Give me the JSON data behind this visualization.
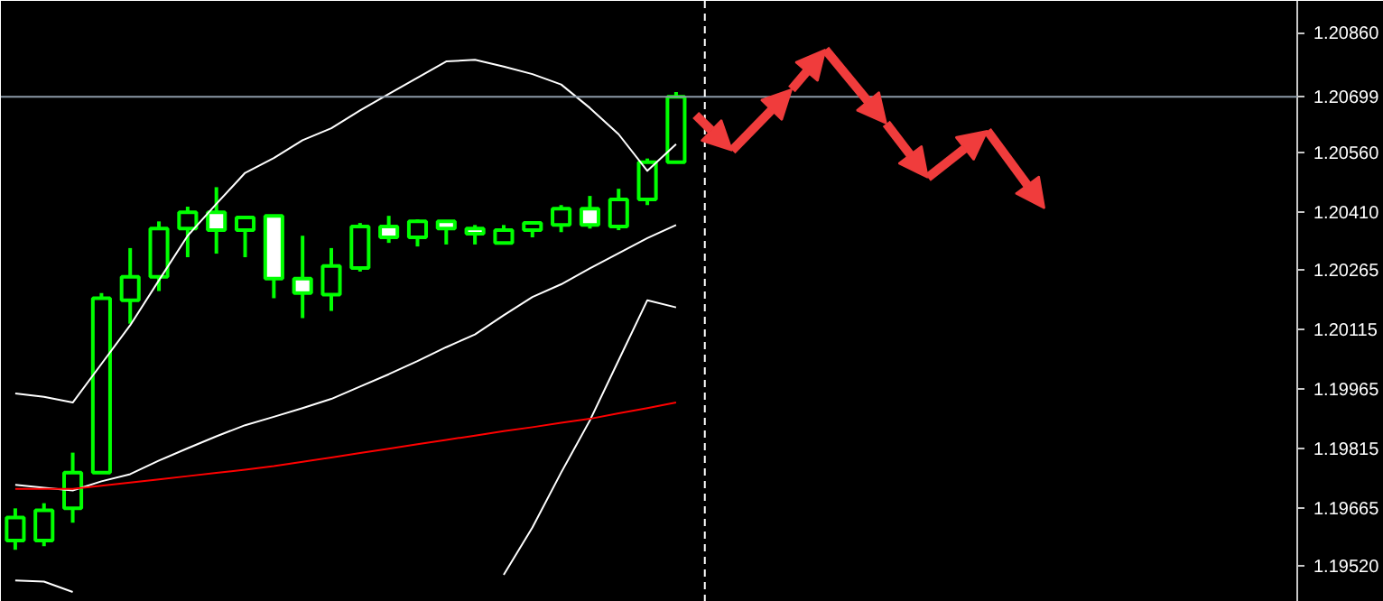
{
  "chart_data": {
    "type": "candlestick",
    "categories": [
      null,
      null,
      null,
      null,
      null,
      null,
      null,
      null,
      null,
      null,
      null,
      null,
      null,
      null,
      null,
      null,
      null,
      null,
      null,
      null,
      null,
      null,
      null,
      null
    ],
    "ylim": [
      1.1943,
      1.2094
    ],
    "yticks": [
      {
        "value": 1.2086,
        "label": "1.20860"
      },
      {
        "value": 1.20699,
        "label": "1.20699"
      },
      {
        "value": 1.2056,
        "label": "1.20560"
      },
      {
        "value": 1.2041,
        "label": "1.20410"
      },
      {
        "value": 1.20265,
        "label": "1.20265"
      },
      {
        "value": 1.20115,
        "label": "1.20115"
      },
      {
        "value": 1.19965,
        "label": "1.19965"
      },
      {
        "value": 1.19815,
        "label": "1.19815"
      },
      {
        "value": 1.19665,
        "label": "1.19665"
      },
      {
        "value": 1.1952,
        "label": "1.19520"
      }
    ],
    "tick_labels": "y",
    "ref_lines": [
      {
        "axis": "y",
        "value": 1.20699,
        "color": "#8c9aa8",
        "line_style": "solid"
      }
    ],
    "series": [
      {
        "type": "line",
        "color": "#ffffff",
        "values": [
          1.19954,
          1.19945,
          1.19931,
          1.20028,
          1.20125,
          1.20238,
          1.2035,
          1.2043,
          1.20508,
          1.20545,
          1.2059,
          1.2062,
          1.20665,
          1.20706,
          1.20747,
          1.20788,
          1.20792,
          1.20775,
          1.20756,
          1.2073,
          1.20671,
          1.20605,
          1.20513,
          1.2058
        ]
      },
      {
        "type": "line",
        "color": "#ffffff",
        "values": [
          1.19724,
          1.19717,
          1.1971,
          1.19733,
          1.19751,
          1.19785,
          1.19816,
          1.19846,
          1.19874,
          1.19895,
          1.19917,
          1.1994,
          1.19971,
          1.20002,
          1.20035,
          1.2007,
          1.20102,
          1.2015,
          1.20196,
          1.20228,
          1.20268,
          1.20306,
          1.20344,
          1.20377
        ]
      },
      {
        "type": "line",
        "color": "#ffffff",
        "values": [
          1.19484,
          1.19481,
          1.19455,
          null,
          null,
          null,
          null,
          null,
          null,
          null,
          null,
          null,
          null,
          null,
          null,
          null,
          null,
          1.19498,
          1.19617,
          1.19755,
          1.19886,
          1.20037,
          1.20188,
          1.2017
        ]
      },
      {
        "type": "line",
        "color": "#ff0000",
        "values": [
          1.19714,
          1.19714,
          1.19714,
          1.19722,
          1.1973,
          1.19738,
          1.19746,
          1.19754,
          1.19762,
          1.19771,
          1.19782,
          1.19793,
          1.19804,
          1.19815,
          1.19826,
          1.19837,
          1.19848,
          1.19859,
          1.19869,
          1.1988,
          1.1989,
          1.19904,
          1.19917,
          1.19931
        ]
      },
      {
        "color": "#00ff00",
        "ohlc": [
          [
            1.19584,
            1.19665,
            1.19561,
            1.19642
          ],
          [
            1.19584,
            1.19678,
            1.1957,
            1.1966
          ],
          [
            1.19665,
            1.19805,
            1.19629,
            1.19755
          ],
          [
            1.19755,
            1.20206,
            1.19755,
            1.20193
          ],
          [
            1.20188,
            1.20319,
            1.20129,
            1.20247
          ],
          [
            1.20247,
            1.20386,
            1.20211,
            1.20368
          ],
          [
            1.20368,
            1.20423,
            1.20296,
            1.20409
          ],
          [
            1.20409,
            1.20472,
            1.20305,
            1.20364
          ],
          [
            1.20364,
            1.204,
            1.20296,
            1.20396
          ],
          [
            1.204,
            1.204,
            1.20193,
            1.20242
          ],
          [
            1.20242,
            1.2035,
            1.20143,
            1.20206
          ],
          [
            1.20202,
            1.20319,
            1.20161,
            1.20274
          ],
          [
            1.20269,
            1.20382,
            1.2026,
            1.20373
          ],
          [
            1.20373,
            1.204,
            1.20332,
            1.20346
          ],
          [
            1.20346,
            1.20391,
            1.20323,
            1.20386
          ],
          [
            1.20386,
            1.20386,
            1.20328,
            1.20368
          ],
          [
            1.20368,
            1.20377,
            1.20328,
            1.20355
          ],
          [
            1.20332,
            1.20377,
            1.20332,
            1.20364
          ],
          [
            1.20364,
            1.20382,
            1.20346,
            1.20382
          ],
          [
            1.20377,
            1.20427,
            1.20359,
            1.20418
          ],
          [
            1.20418,
            1.2045,
            1.20368,
            1.20377
          ],
          [
            1.20373,
            1.20468,
            1.20364,
            1.20441
          ],
          [
            1.20441,
            1.20544,
            1.20427,
            1.20535
          ],
          [
            1.20535,
            1.20711,
            1.20535,
            1.20699
          ]
        ]
      }
    ]
  }
}
